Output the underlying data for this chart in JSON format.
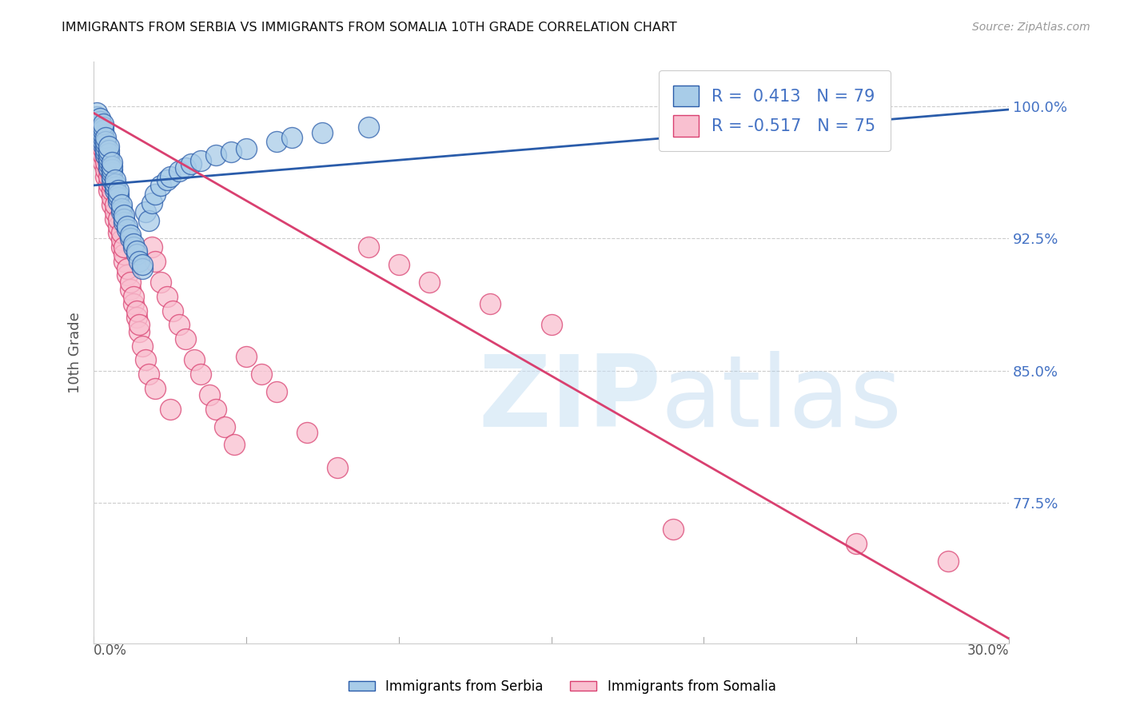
{
  "title": "IMMIGRANTS FROM SERBIA VS IMMIGRANTS FROM SOMALIA 10TH GRADE CORRELATION CHART",
  "source": "Source: ZipAtlas.com",
  "ylabel": "10th Grade",
  "y_ticks": [
    0.775,
    0.85,
    0.925,
    1.0
  ],
  "y_tick_labels": [
    "77.5%",
    "85.0%",
    "92.5%",
    "100.0%"
  ],
  "x_min": 0.0,
  "x_max": 0.3,
  "y_min": 0.695,
  "y_max": 1.025,
  "serbia_color": "#a8cce8",
  "somalia_color": "#f9c0d0",
  "serbia_R": 0.413,
  "serbia_N": 79,
  "somalia_R": -0.517,
  "somalia_N": 75,
  "serbia_line_color": "#2a5caa",
  "somalia_line_color": "#d94070",
  "watermark_zip": "ZIP",
  "watermark_atlas": "atlas",
  "legend_label_serbia": "Immigrants from Serbia",
  "legend_label_somalia": "Immigrants from Somalia",
  "serbia_points_x": [
    0.001,
    0.001,
    0.001,
    0.001,
    0.002,
    0.002,
    0.002,
    0.002,
    0.002,
    0.003,
    0.003,
    0.003,
    0.003,
    0.003,
    0.003,
    0.003,
    0.004,
    0.004,
    0.004,
    0.004,
    0.004,
    0.004,
    0.005,
    0.005,
    0.005,
    0.005,
    0.005,
    0.005,
    0.005,
    0.006,
    0.006,
    0.006,
    0.006,
    0.006,
    0.006,
    0.007,
    0.007,
    0.007,
    0.007,
    0.008,
    0.008,
    0.008,
    0.008,
    0.009,
    0.009,
    0.009,
    0.01,
    0.01,
    0.01,
    0.011,
    0.011,
    0.012,
    0.012,
    0.013,
    0.013,
    0.014,
    0.014,
    0.015,
    0.016,
    0.016,
    0.017,
    0.018,
    0.019,
    0.02,
    0.022,
    0.024,
    0.025,
    0.028,
    0.03,
    0.032,
    0.035,
    0.04,
    0.045,
    0.05,
    0.06,
    0.065,
    0.075,
    0.09,
    0.23
  ],
  "serbia_points_y": [
    0.99,
    0.992,
    0.994,
    0.996,
    0.985,
    0.987,
    0.989,
    0.991,
    0.993,
    0.978,
    0.98,
    0.982,
    0.984,
    0.986,
    0.988,
    0.99,
    0.972,
    0.974,
    0.976,
    0.978,
    0.98,
    0.982,
    0.965,
    0.967,
    0.969,
    0.971,
    0.973,
    0.975,
    0.977,
    0.958,
    0.96,
    0.962,
    0.964,
    0.966,
    0.968,
    0.952,
    0.954,
    0.956,
    0.958,
    0.946,
    0.948,
    0.95,
    0.952,
    0.94,
    0.942,
    0.944,
    0.934,
    0.936,
    0.938,
    0.93,
    0.932,
    0.925,
    0.927,
    0.92,
    0.922,
    0.916,
    0.918,
    0.912,
    0.908,
    0.91,
    0.94,
    0.935,
    0.945,
    0.95,
    0.955,
    0.958,
    0.96,
    0.963,
    0.965,
    0.967,
    0.969,
    0.972,
    0.974,
    0.976,
    0.98,
    0.982,
    0.985,
    0.988,
    0.997
  ],
  "somalia_points_x": [
    0.001,
    0.001,
    0.001,
    0.002,
    0.002,
    0.002,
    0.003,
    0.003,
    0.003,
    0.003,
    0.004,
    0.004,
    0.004,
    0.004,
    0.005,
    0.005,
    0.005,
    0.005,
    0.006,
    0.006,
    0.006,
    0.006,
    0.007,
    0.007,
    0.007,
    0.008,
    0.008,
    0.008,
    0.009,
    0.009,
    0.009,
    0.01,
    0.01,
    0.01,
    0.011,
    0.011,
    0.012,
    0.012,
    0.013,
    0.013,
    0.014,
    0.014,
    0.015,
    0.015,
    0.016,
    0.017,
    0.018,
    0.019,
    0.02,
    0.022,
    0.024,
    0.026,
    0.028,
    0.03,
    0.033,
    0.035,
    0.038,
    0.04,
    0.043,
    0.046,
    0.05,
    0.055,
    0.06,
    0.07,
    0.08,
    0.09,
    0.1,
    0.11,
    0.13,
    0.15,
    0.19,
    0.25,
    0.28,
    0.02,
    0.025
  ],
  "somalia_points_y": [
    0.98,
    0.985,
    0.99,
    0.975,
    0.978,
    0.982,
    0.968,
    0.972,
    0.976,
    0.98,
    0.96,
    0.964,
    0.968,
    0.972,
    0.952,
    0.956,
    0.96,
    0.964,
    0.944,
    0.948,
    0.952,
    0.956,
    0.936,
    0.94,
    0.944,
    0.928,
    0.932,
    0.936,
    0.92,
    0.924,
    0.928,
    0.912,
    0.916,
    0.92,
    0.904,
    0.908,
    0.896,
    0.9,
    0.888,
    0.892,
    0.88,
    0.884,
    0.872,
    0.876,
    0.864,
    0.856,
    0.848,
    0.92,
    0.912,
    0.9,
    0.892,
    0.884,
    0.876,
    0.868,
    0.856,
    0.848,
    0.836,
    0.828,
    0.818,
    0.808,
    0.858,
    0.848,
    0.838,
    0.815,
    0.795,
    0.92,
    0.91,
    0.9,
    0.888,
    0.876,
    0.76,
    0.752,
    0.742,
    0.84,
    0.828
  ]
}
